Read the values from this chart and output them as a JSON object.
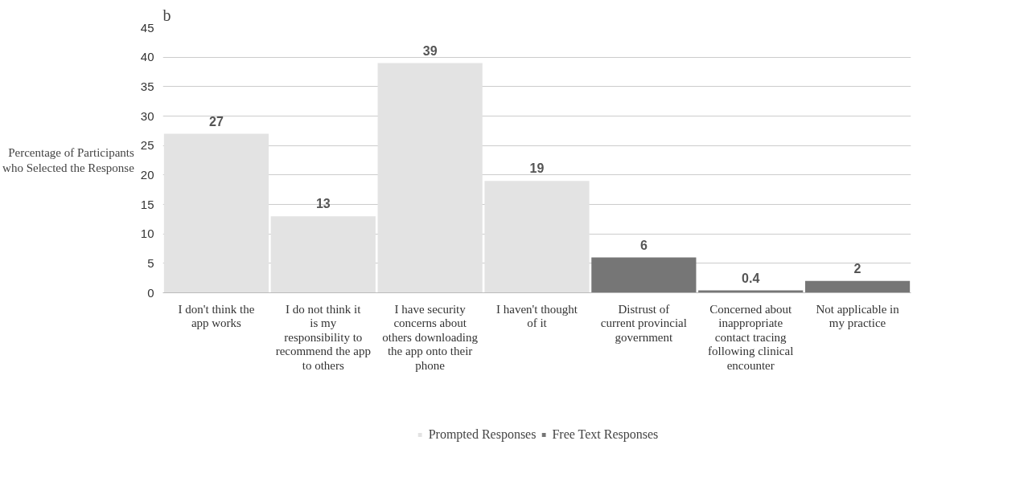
{
  "chart_data": {
    "type": "bar",
    "categories": [
      "I don't think the app works",
      "I do not think it is my responsibility to recommend the app to others",
      "I have security concerns about others downloading the app onto their phone",
      "I haven't thought of it",
      "Distrust of current provincial government",
      "Concerned about inappropriate contact tracing following clinical encounter",
      "Not applicable in my practice"
    ],
    "series": [
      {
        "name": "Prompted Responses",
        "color": "#e3e3e3",
        "values": [
          27,
          13,
          39,
          19,
          null,
          null,
          null
        ]
      },
      {
        "name": "Free Text Responses",
        "color": "#767676",
        "values": [
          null,
          null,
          null,
          null,
          6,
          0.4,
          2
        ]
      }
    ],
    "ylabel": "Percentage of Participants who Selected the Response",
    "ylim": [
      0,
      45
    ],
    "yticks": [
      0,
      5,
      10,
      15,
      20,
      25,
      30,
      35,
      40,
      45
    ],
    "grid": "y",
    "data_labels": true,
    "legend": "bottom",
    "annotations": [
      "b"
    ]
  }
}
